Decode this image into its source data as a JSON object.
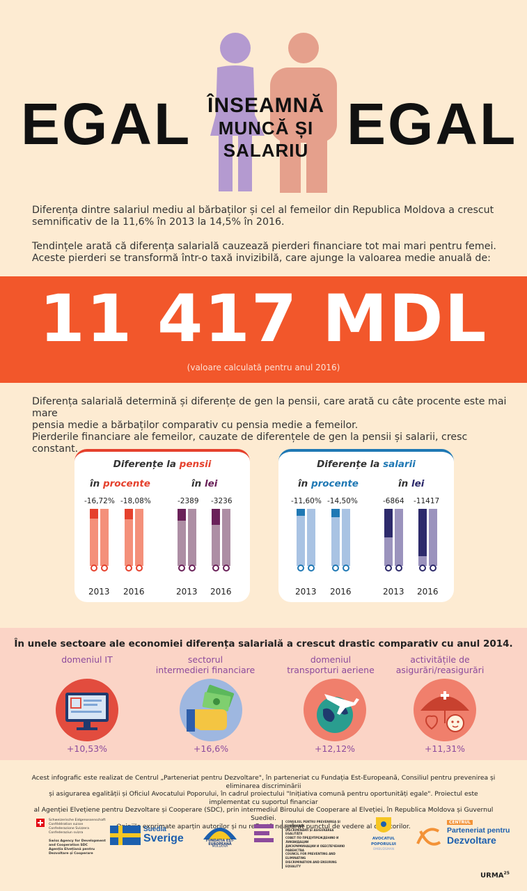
{
  "title": {
    "left": "EGAL",
    "middle_line1": "ÎNSEAMNĂ",
    "middle_line2": "MUNCĂ ȘI SALARIU",
    "right": "EGAL"
  },
  "intro": {
    "p1_line1": "Diferența dintre salariul mediu al bărbaților și cel al femeilor din Republica Moldova a crescut",
    "p1_line2": "semnificativ de la 11,6% în 2013 la 14,5% în 2016.",
    "p2_line1": "Tendințele arată că diferența salarială cauzează pierderi financiare tot mai mari pentru femei.",
    "p2_line2": "Aceste pierderi se transformă într-o taxă invizibilă, care ajunge la valoarea medie anuală de:"
  },
  "banner": {
    "value": "11 417 MDL",
    "note": "(valoare calculată pentru anul 2016)"
  },
  "pensions_text": {
    "line1": "Diferența salarială determină și diferențe de gen la pensii, care arată cu câte procente este mai mare",
    "line2": "pensia medie a bărbaților comparativ cu pensia medie a femeilor.",
    "line3": "Pierderile financiare ale femeilor, cauzate de diferențele de gen la pensii și salarii, cresc constant."
  },
  "cards": {
    "pensii": {
      "title_prefix": "Diferențe la ",
      "title_accent": "pensii",
      "unit1_prefix": "în ",
      "unit1_accent": "procente",
      "unit2_prefix": "în ",
      "unit2_accent": "lei",
      "pct_2013": "-16,72%",
      "pct_2016": "-18,08%",
      "lei_2013": "-2389",
      "lei_2016": "-3236",
      "fill_pct_2013": 0.1672,
      "fill_pct_2016": 0.1808,
      "fill_lei_2013": 0.21,
      "fill_lei_2016": 0.28
    },
    "salarii": {
      "title_prefix": "Diferențe la ",
      "title_accent": "salarii",
      "unit1_prefix": "în ",
      "unit1_accent": "procente",
      "unit2_prefix": "în ",
      "unit2_accent": "lei",
      "pct_2013": "-11,60%",
      "pct_2016": "-14,50%",
      "lei_2013": "-6864",
      "lei_2016": "-11417",
      "fill_pct_2013": 0.116,
      "fill_pct_2016": 0.145,
      "fill_lei_2013": 0.5,
      "fill_lei_2016": 0.83
    },
    "years": [
      "2013",
      "2016",
      "2013",
      "2016"
    ]
  },
  "sectors": {
    "title": "În unele sectoare ale economiei diferența salarială a crescut drastic comparativ cu anul 2014.",
    "items": [
      {
        "label1": "",
        "label2": "domeniul IT",
        "value": "+10,53%",
        "icon": "computer-icon"
      },
      {
        "label1": "sectorul",
        "label2": "intermedieri financiare",
        "value": "+16,6%",
        "icon": "money-hand-icon"
      },
      {
        "label1": "domeniul",
        "label2": "transporturi aeriene",
        "value": "+12,12%",
        "icon": "airplane-globe-icon"
      },
      {
        "label1": "activitățile de",
        "label2": "asigurări/reasigurări",
        "value": "+11,31%",
        "icon": "umbrella-family-icon"
      }
    ]
  },
  "footer": {
    "line1": "Acest infografic este realizat de Centrul „Parteneriat pentru Dezvoltare\", în parteneriat cu Fundația Est-Europeană, Consiliul pentru prevenirea și eliminarea discriminării",
    "line2": "și asigurarea egalității și Oficiul Avocatului Poporului, în cadrul proiectului \"Inițiativa comună pentru oportunități egale\". Proiectul este implementat cu suportul financiar",
    "line3": "al  Agenției Elvețiene pentru Dezvoltare și Cooperare (SDC), prin intermediul Biroului de Cooperare al Elveției, în Republica Moldova și Guvernul Suediei.",
    "line4": "Opiniile exprimate aparțin autorilor și nu reflectă neapărat punctul de vedere al donatorilor."
  },
  "logos": {
    "swiss_lines": [
      "Schweizerische Eidgenossenschaft",
      "Confédération suisse",
      "Confederazione Svizzera",
      "Confederaziun svizra"
    ],
    "swiss_agency": [
      "Swiss Agency for Development",
      "and Cooperation SDC",
      "Agenția Elvețiană pentru",
      "Dezvoltare și Cooperare"
    ],
    "sweden_1": "Suedia",
    "sweden_2": "Sverige",
    "fee_1": "FUNDAȚIA EST-EUROPEANĂ",
    "fee_2": "MOLDOVA",
    "council": [
      "CONSILIUL PENTRU PREVENIREA ȘI ELIMINAREA",
      "DISCRIMINĂRII ȘI ASIGURAREA EGALITĂȚII",
      "СОВЕТ ПО ПРЕДУПРЕЖДЕНИЮ И ЛИКВИДАЦИИ",
      "ДИСКРИМИНАЦИИ И ОБЕСПЕЧЕНИЮ РАВЕНСТВА",
      "COUNCIL FOR PREVENTING AND ELIMINATING",
      "DISCRIMINATION AND ENSURING EQUALITY"
    ],
    "avocat_1": "AVOCATUL",
    "avocat_2": "POPORULUI",
    "avocat_3": "OMBUDSMAN",
    "cpd_1": "CENTRUL",
    "cpd_2": "Parteneriat pentru",
    "cpd_3": "Dezvoltare",
    "urma": "URMA",
    "urma_sup": "25"
  },
  "colors": {
    "banner": "#f2572b",
    "woman": "#b49ad0",
    "man": "#e5a08c",
    "pension_red": "#e5412d",
    "pension_light": "#f4907a",
    "pension_plum": "#6a2159",
    "pension_mauve": "#ad8ea4",
    "salary_blue": "#1f78b4",
    "salary_light": "#a9c3e3",
    "salary_navy": "#2d2a6b",
    "salary_grey": "#9b93bd",
    "purple_text": "#8c4a9c"
  }
}
